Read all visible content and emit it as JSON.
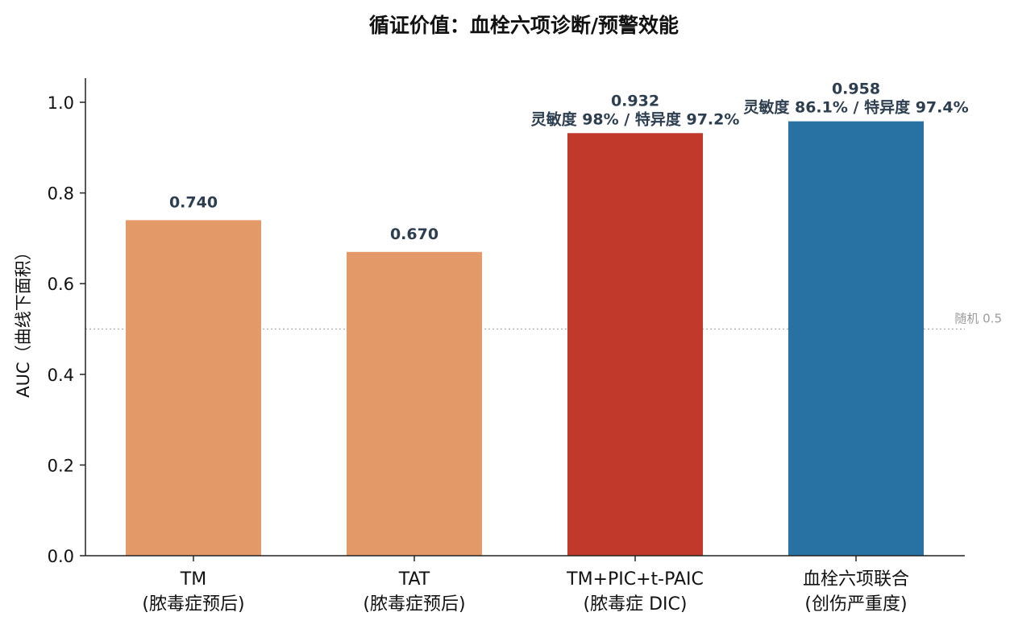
{
  "chart_data": {
    "type": "bar",
    "title": "循证价值：血栓六项诊断/预警效能",
    "xlabel": "",
    "ylabel": "AUC（曲线下面积）",
    "ylim": [
      0,
      1.05
    ],
    "yticks": [
      0.0,
      0.2,
      0.4,
      0.6,
      0.8,
      1.0
    ],
    "ytick_labels": [
      "0.0",
      "0.2",
      "0.4",
      "0.6",
      "0.8",
      "1.0"
    ],
    "grid": false,
    "categories": [
      {
        "line1": "TM",
        "line2": "(脓毒症预后)"
      },
      {
        "line1": "TAT",
        "line2": "(脓毒症预后)"
      },
      {
        "line1": "TM+PIC+t-PAIC",
        "line2": "(脓毒症 DIC)"
      },
      {
        "line1": "血栓六项联合",
        "line2": "(创伤严重度)"
      }
    ],
    "values": [
      0.74,
      0.67,
      0.932,
      0.958
    ],
    "value_labels": [
      "0.740",
      "0.670",
      "0.932",
      "0.958"
    ],
    "annotations": [
      "",
      "",
      "灵敏度 98% / 特异度 97.2%",
      "灵敏度 86.1% / 特异度 97.4%"
    ],
    "colors": [
      "#e39a68",
      "#e39a68",
      "#c0392b",
      "#2771a3"
    ],
    "reference_line": {
      "value": 0.5,
      "label": "随机 0.5",
      "color": "#aaaaaa"
    }
  }
}
